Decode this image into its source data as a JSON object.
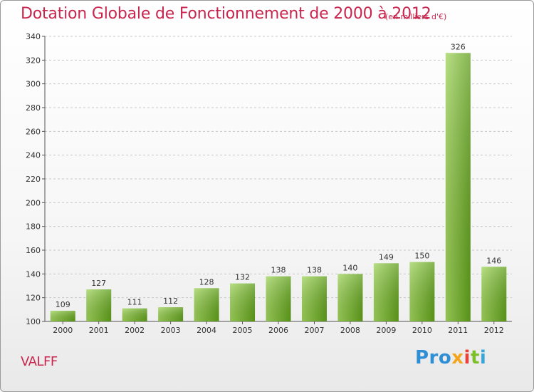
{
  "colors": {
    "title": "#c8264e",
    "bar_top": "#9fd35b",
    "bar_bottom": "#5f9e1a",
    "grid": "#c8c8c8",
    "axis": "#555555"
  },
  "commune": "VALFF",
  "logo": {
    "parts": [
      "Pro",
      "x",
      "i",
      "t",
      "i"
    ]
  },
  "chart_data": {
    "type": "bar",
    "title": "Dotation Globale de Fonctionnement de 2000 à 2012",
    "subtitle": "(en milliers d'€)",
    "categories": [
      "2000",
      "2001",
      "2002",
      "2003",
      "2004",
      "2005",
      "2006",
      "2007",
      "2008",
      "2009",
      "2010",
      "2011",
      "2012"
    ],
    "values": [
      109,
      127,
      111,
      112,
      128,
      132,
      138,
      138,
      140,
      149,
      150,
      326,
      146
    ],
    "ylim": [
      100,
      340
    ],
    "yticks": [
      100,
      120,
      140,
      160,
      180,
      200,
      220,
      240,
      260,
      280,
      300,
      320,
      340
    ],
    "grid": "horizontal dashed",
    "legend": "none"
  }
}
